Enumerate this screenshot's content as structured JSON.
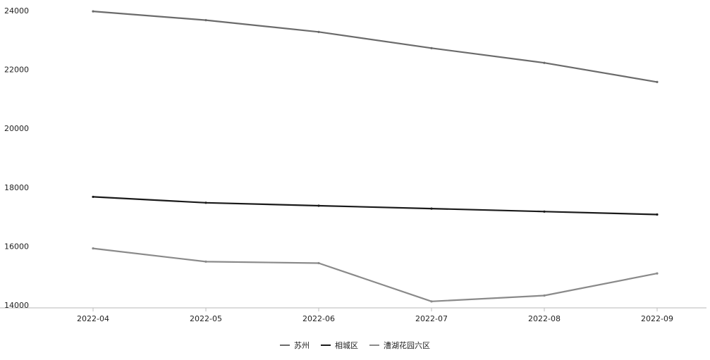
{
  "chart_data": {
    "type": "line",
    "categories": [
      "2022-04",
      "2022-05",
      "2022-06",
      "2022-07",
      "2022-08",
      "2022-09"
    ],
    "series": [
      {
        "name": "苏州",
        "values": [
          23950,
          23650,
          23250,
          22700,
          22200,
          21550
        ],
        "color": "#6b6b6b"
      },
      {
        "name": "相城区",
        "values": [
          17650,
          17450,
          17350,
          17250,
          17150,
          17050
        ],
        "color": "#1a1a1a"
      },
      {
        "name": "漕湖花园六区",
        "values": [
          15900,
          15450,
          15400,
          14100,
          14300,
          15050
        ],
        "color": "#8a8a8a"
      }
    ],
    "y_ticks": [
      14000,
      16000,
      18000,
      20000,
      22000,
      24000
    ],
    "ylim": [
      14000,
      24000
    ],
    "grid": false,
    "legend_position": "bottom-center"
  }
}
